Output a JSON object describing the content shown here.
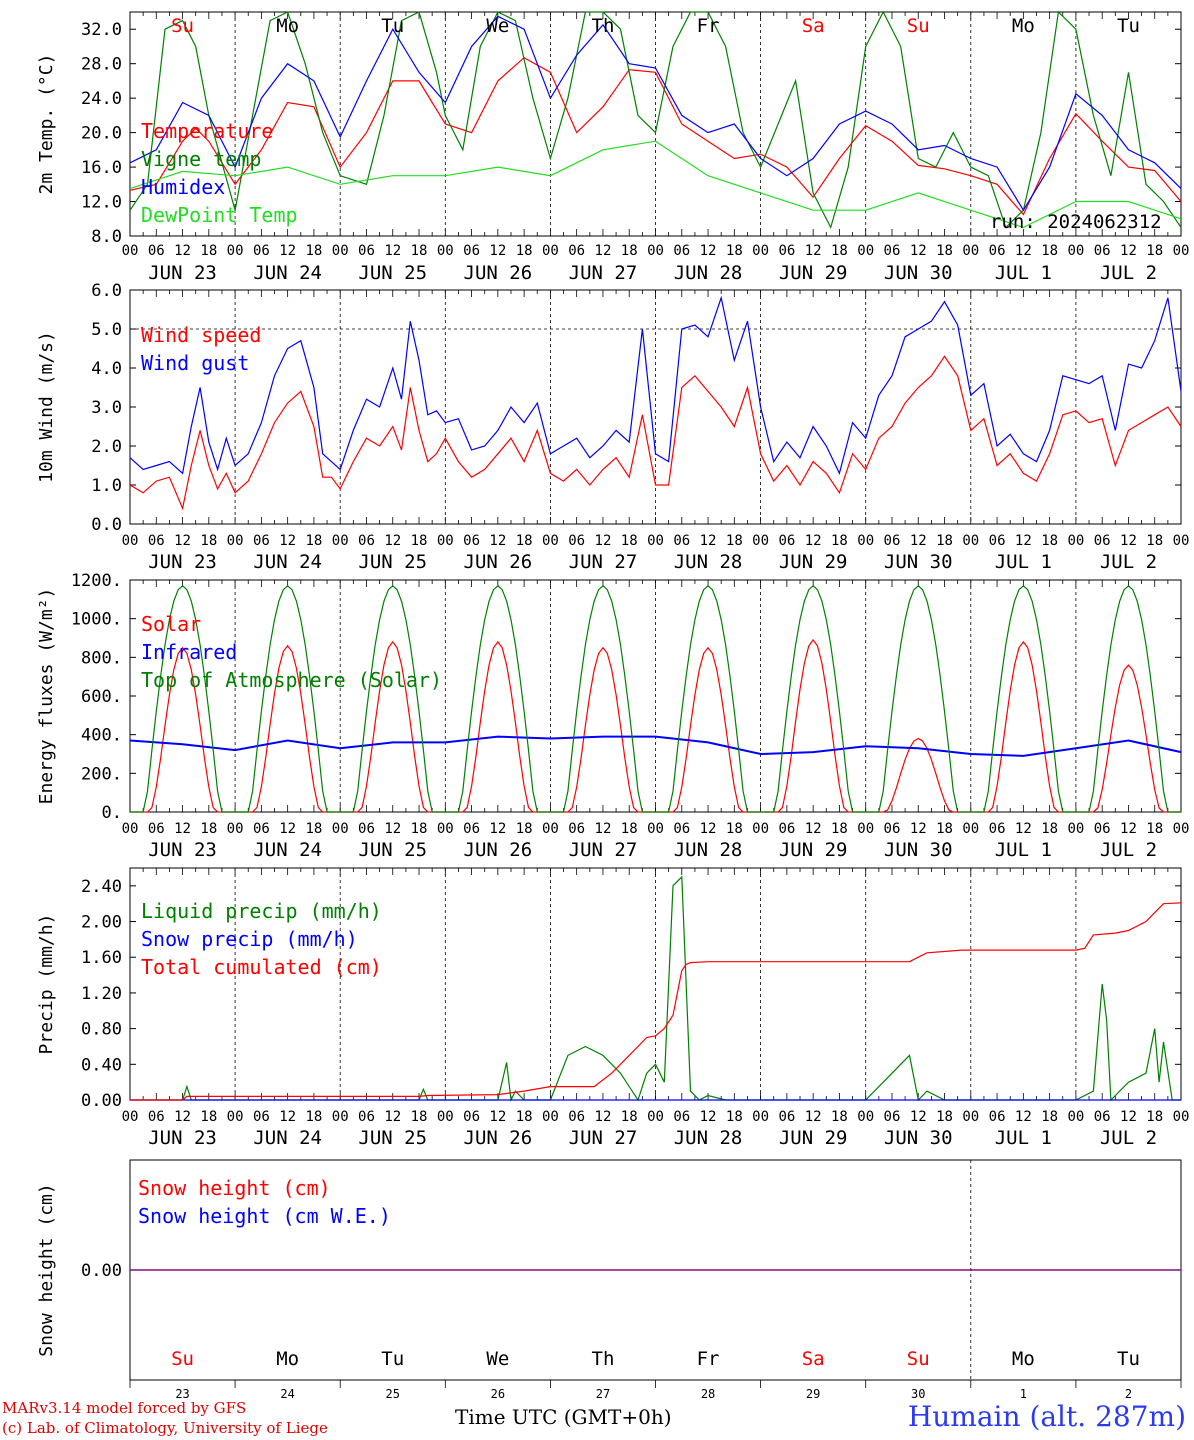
{
  "days": [
    "JUN 23",
    "JUN 24",
    "JUN 25",
    "JUN 26",
    "JUN 27",
    "JUN 28",
    "JUN 29",
    "JUN 30",
    "JUL  1",
    "JUL  2"
  ],
  "day_nums": [
    "23",
    "24",
    "25",
    "26",
    "27",
    "28",
    "29",
    "30",
    "1",
    "2"
  ],
  "weekdays": [
    "Su",
    "Mo",
    "Tu",
    "We",
    "Th",
    "Fr",
    "Sa",
    "Su",
    "Mo",
    "Tu"
  ],
  "weekend_flags": [
    true,
    false,
    false,
    false,
    false,
    false,
    true,
    true,
    false,
    false
  ],
  "hour_ticks": [
    "00",
    "06",
    "12",
    "18"
  ],
  "colors": {
    "red": "#ff0000",
    "green": "#008000",
    "blue": "#0000ff",
    "lightgreen": "#22dd22",
    "purple": "#800080"
  },
  "footer": {
    "credit1": "MARv3.14 model forced by GFS",
    "credit2": "(c) Lab. of Climatology, University of Liege",
    "xaxis_title": "Time UTC (GMT+0h)",
    "station": "Humain (alt. 287m)"
  },
  "chart_data": [
    {
      "type": "line",
      "ylabel": "2m Temp. (°C)",
      "ylim": [
        8,
        34
      ],
      "yticks": [
        "8.0",
        "12.0",
        "16.0",
        "20.0",
        "24.0",
        "28.0",
        "32.0"
      ],
      "yticks_values": [
        8,
        12,
        16,
        20,
        24,
        28,
        32
      ],
      "annotation": "run: 2024062312",
      "series": [
        {
          "name": "Temperature",
          "color": "#ff0000",
          "x": [
            0,
            6,
            12,
            15,
            18,
            24,
            30,
            36,
            42,
            48,
            54,
            60,
            66,
            72,
            78,
            84,
            90,
            96,
            102,
            108,
            114,
            120,
            126,
            132,
            138,
            144,
            150,
            156,
            162,
            168,
            174,
            180,
            186,
            192,
            198,
            204,
            210,
            216,
            222,
            228,
            234,
            240
          ],
          "values": [
            13.3,
            14,
            19,
            20.5,
            19,
            14,
            18,
            23.5,
            23,
            16,
            20,
            26,
            26,
            21,
            20,
            26,
            28.7,
            27,
            20,
            23,
            27.3,
            27,
            21,
            19,
            17,
            17.5,
            16,
            12.5,
            17,
            20.8,
            19,
            16.2,
            15.8,
            15,
            14,
            10.5,
            17,
            22.2,
            19,
            16,
            15.6,
            12
          ]
        },
        {
          "name": "Vigne temp",
          "color": "#008000",
          "x": [
            0,
            4,
            8,
            12,
            15,
            18,
            24,
            28,
            32,
            36,
            40,
            44,
            48,
            54,
            58,
            62,
            66,
            70,
            72,
            76,
            80,
            84,
            88,
            92,
            96,
            100,
            104,
            108,
            112,
            116,
            120,
            124,
            128,
            132,
            136,
            140,
            144,
            148,
            152,
            156,
            160,
            164,
            168,
            172,
            176,
            180,
            184,
            188,
            192,
            196,
            200,
            204,
            208,
            212,
            216,
            220,
            224,
            228,
            232,
            236,
            240
          ],
          "values": [
            11,
            14,
            32,
            33,
            30,
            22,
            11,
            22,
            33,
            34,
            28,
            20,
            15,
            14,
            22,
            33,
            34,
            27,
            22,
            18,
            30,
            34,
            33,
            24,
            17,
            24,
            34,
            34,
            32,
            22,
            20,
            30,
            34,
            34,
            30,
            20,
            16,
            21,
            26,
            13,
            9,
            16,
            30,
            34,
            30,
            17,
            16,
            20,
            16,
            15,
            9,
            11,
            20,
            34,
            32,
            22,
            15,
            27,
            14,
            12,
            9
          ]
        },
        {
          "name": "Humidex",
          "color": "#0000ff",
          "x": [
            0,
            6,
            12,
            18,
            24,
            30,
            36,
            42,
            48,
            54,
            60,
            66,
            72,
            78,
            84,
            90,
            96,
            102,
            108,
            114,
            120,
            126,
            132,
            138,
            144,
            150,
            156,
            162,
            168,
            174,
            180,
            186,
            192,
            198,
            204,
            210,
            216,
            222,
            228,
            234,
            240
          ],
          "values": [
            16.5,
            18,
            23.5,
            22,
            16,
            24,
            28,
            26,
            19.5,
            26,
            32,
            27,
            23.5,
            30,
            33.5,
            32,
            24,
            29,
            32.5,
            28,
            27.5,
            22,
            20,
            21,
            17,
            15,
            17,
            21,
            22.5,
            21,
            18,
            18.5,
            17,
            16,
            11,
            16,
            24.5,
            22,
            18,
            16.5,
            13.5
          ]
        },
        {
          "name": "DewPoint Temp",
          "color": "#22dd22",
          "x": [
            0,
            12,
            24,
            36,
            48,
            60,
            72,
            84,
            96,
            108,
            120,
            132,
            144,
            156,
            168,
            180,
            192,
            204,
            216,
            228,
            240
          ],
          "values": [
            13.5,
            15.5,
            15,
            16,
            14,
            15,
            15,
            16,
            15,
            18,
            19,
            15,
            13,
            11,
            11,
            13,
            11,
            9,
            12,
            12,
            10
          ]
        }
      ]
    },
    {
      "type": "line",
      "ylabel": "10m Wind (m/s)",
      "ylim": [
        0,
        6
      ],
      "yticks": [
        "0.0",
        "1.0",
        "2.0",
        "3.0",
        "4.0",
        "5.0",
        "6.0"
      ],
      "yticks_values": [
        0,
        1,
        2,
        3,
        4,
        5,
        6
      ],
      "dashed_level": 5,
      "series": [
        {
          "name": "Wind speed",
          "color": "#ff0000",
          "x": [
            0,
            3,
            6,
            9,
            12,
            14,
            16,
            18,
            20,
            22,
            24,
            27,
            30,
            33,
            36,
            39,
            42,
            44,
            46,
            48,
            51,
            54,
            57,
            60,
            62,
            64,
            66,
            68,
            70,
            72,
            75,
            78,
            81,
            84,
            87,
            90,
            93,
            96,
            99,
            102,
            105,
            108,
            111,
            114,
            117,
            120,
            123,
            126,
            129,
            132,
            135,
            138,
            141,
            144,
            147,
            150,
            153,
            156,
            159,
            162,
            165,
            168,
            171,
            174,
            177,
            180,
            183,
            186,
            189,
            192,
            195,
            198,
            201,
            204,
            207,
            210,
            213,
            216,
            219,
            222,
            225,
            228,
            231,
            234,
            237,
            240
          ],
          "values": [
            1,
            0.8,
            1.1,
            1.2,
            0.4,
            1.5,
            2.4,
            1.5,
            0.9,
            1.3,
            0.8,
            1.1,
            1.8,
            2.6,
            3.1,
            3.4,
            2.5,
            1.2,
            1.2,
            0.9,
            1.6,
            2.2,
            2.0,
            2.5,
            1.9,
            3.5,
            2.4,
            1.6,
            1.8,
            2.2,
            1.6,
            1.2,
            1.4,
            1.8,
            2.2,
            1.6,
            2.4,
            1.3,
            1.1,
            1.4,
            1.0,
            1.4,
            1.7,
            1.2,
            2.8,
            1.0,
            1.0,
            3.5,
            3.8,
            3.4,
            3.0,
            2.5,
            3.5,
            1.8,
            1.1,
            1.5,
            1.0,
            1.6,
            1.3,
            0.8,
            1.8,
            1.4,
            2.2,
            2.5,
            3.1,
            3.5,
            3.8,
            4.3,
            3.8,
            2.4,
            2.7,
            1.5,
            1.8,
            1.3,
            1.1,
            1.8,
            2.8,
            2.9,
            2.6,
            2.7,
            1.5,
            2.4,
            2.6,
            2.8,
            3.0,
            2.5
          ]
        },
        {
          "name": "Wind gust",
          "color": "#0000ff",
          "x": [
            0,
            3,
            6,
            9,
            12,
            14,
            16,
            18,
            20,
            22,
            24,
            27,
            30,
            33,
            36,
            39,
            42,
            44,
            46,
            48,
            51,
            54,
            57,
            60,
            62,
            64,
            66,
            68,
            70,
            72,
            75,
            78,
            81,
            84,
            87,
            90,
            93,
            96,
            99,
            102,
            105,
            108,
            111,
            114,
            117,
            120,
            123,
            126,
            129,
            132,
            135,
            138,
            141,
            144,
            147,
            150,
            153,
            156,
            159,
            162,
            165,
            168,
            171,
            174,
            177,
            180,
            183,
            186,
            189,
            192,
            195,
            198,
            201,
            204,
            207,
            210,
            213,
            216,
            219,
            222,
            225,
            228,
            231,
            234,
            237,
            240
          ],
          "values": [
            1.7,
            1.4,
            1.5,
            1.6,
            1.3,
            2.5,
            3.5,
            2.1,
            1.4,
            2.2,
            1.5,
            1.8,
            2.6,
            3.8,
            4.5,
            4.7,
            3.5,
            1.8,
            1.6,
            1.4,
            2.4,
            3.2,
            3.0,
            4.0,
            3.2,
            5.2,
            4.2,
            2.8,
            2.9,
            2.6,
            2.7,
            1.9,
            2.0,
            2.4,
            3.0,
            2.6,
            3.1,
            1.8,
            2.0,
            2.2,
            1.7,
            2.0,
            2.4,
            2.1,
            5.0,
            1.8,
            1.6,
            5.0,
            5.1,
            4.8,
            5.8,
            4.2,
            5.2,
            3.0,
            1.6,
            2.1,
            1.7,
            2.5,
            2.0,
            1.3,
            2.6,
            2.2,
            3.3,
            3.8,
            4.8,
            5.0,
            5.2,
            5.7,
            5.1,
            3.3,
            3.6,
            2.0,
            2.3,
            1.8,
            1.6,
            2.4,
            3.8,
            3.7,
            3.6,
            3.8,
            2.4,
            4.1,
            4.0,
            4.7,
            5.8,
            3.4
          ]
        }
      ]
    },
    {
      "type": "line",
      "ylabel": "Energy fluxes (W/m²)",
      "ylim": [
        0,
        1200
      ],
      "yticks": [
        "0.",
        "200.",
        "400.",
        "600.",
        "800.",
        "1000.",
        "1200."
      ],
      "yticks_values": [
        0,
        200,
        400,
        600,
        800,
        1000,
        1200
      ],
      "series": [
        {
          "name": "Solar",
          "color": "#ff0000",
          "peaks": [
            850,
            860,
            880,
            880,
            850,
            850,
            890,
            380,
            880,
            760
          ]
        },
        {
          "name": "Infrared",
          "color": "#0000ff",
          "x": [
            0,
            12,
            24,
            36,
            48,
            60,
            72,
            84,
            96,
            108,
            120,
            132,
            144,
            156,
            168,
            180,
            192,
            204,
            216,
            228,
            240
          ],
          "values": [
            370,
            350,
            320,
            370,
            330,
            360,
            360,
            390,
            380,
            390,
            390,
            360,
            300,
            310,
            340,
            330,
            300,
            290,
            330,
            370,
            310
          ]
        },
        {
          "name": "Top of Atmosphere (Solar)",
          "color": "#008000",
          "peak": 1170
        }
      ]
    },
    {
      "type": "line",
      "ylabel": "Precip (mm/h)",
      "ylim": [
        0,
        2.6
      ],
      "yticks": [
        "0.00",
        "0.40",
        "0.80",
        "1.20",
        "1.60",
        "2.00",
        "2.40"
      ],
      "yticks_values": [
        0,
        0.4,
        0.8,
        1.2,
        1.6,
        2.0,
        2.4
      ],
      "series": [
        {
          "name": "Liquid precip (mm/h)",
          "color": "#008000",
          "x": [
            0,
            12,
            13,
            14,
            24,
            66,
            67,
            68,
            84,
            86,
            87,
            88,
            90,
            96,
            100,
            104,
            108,
            112,
            116,
            118,
            120,
            122,
            124,
            126,
            128,
            130,
            132,
            136,
            168,
            178,
            180,
            182,
            186,
            216,
            220,
            222,
            223,
            224,
            228,
            232,
            234,
            235,
            236,
            238,
            240
          ],
          "values": [
            0,
            0,
            0.15,
            0,
            0,
            0,
            0.12,
            0,
            0,
            0.42,
            0,
            0.1,
            0,
            0,
            0.5,
            0.6,
            0.5,
            0.3,
            0,
            0.3,
            0.4,
            0.2,
            2.4,
            2.5,
            0.1,
            0,
            0.05,
            0,
            0,
            0.5,
            0,
            0.1,
            0,
            0,
            0.1,
            1.3,
            0.9,
            0,
            0.2,
            0.3,
            0.8,
            0.2,
            0.65,
            0,
            0
          ]
        },
        {
          "name": "Snow precip (mm/h)",
          "color": "#0000ff",
          "x": [
            0,
            240
          ],
          "values": [
            0,
            0
          ]
        },
        {
          "name": "Total cumulated (cm)",
          "color": "#ff0000",
          "x": [
            0,
            12,
            13,
            66,
            68,
            84,
            90,
            96,
            102,
            106,
            110,
            114,
            118,
            120,
            122,
            124,
            125,
            126,
            127,
            128,
            132,
            150,
            178,
            180,
            182,
            190,
            216,
            218,
            220,
            225,
            228,
            232,
            234,
            236,
            240
          ],
          "values": [
            0,
            0,
            0.04,
            0.04,
            0.05,
            0.06,
            0.1,
            0.15,
            0.15,
            0.15,
            0.3,
            0.5,
            0.7,
            0.72,
            0.8,
            0.95,
            1.2,
            1.45,
            1.52,
            1.54,
            1.55,
            1.55,
            1.55,
            1.6,
            1.65,
            1.68,
            1.68,
            1.7,
            1.85,
            1.87,
            1.9,
            2.0,
            2.1,
            2.2,
            2.21
          ]
        }
      ]
    },
    {
      "type": "line",
      "ylabel": "Snow height (cm)",
      "ylim": [
        -1,
        1
      ],
      "yticks": [
        "0.00"
      ],
      "yticks_values": [
        0
      ],
      "series": [
        {
          "name": "Snow height (cm)",
          "color": "#ff0000",
          "x": [
            0,
            240
          ],
          "values": [
            0,
            0
          ]
        },
        {
          "name": "Snow height (cm W.E.)",
          "color": "#0000ff",
          "x": [
            0,
            240
          ],
          "values": [
            0,
            0
          ]
        }
      ]
    }
  ]
}
